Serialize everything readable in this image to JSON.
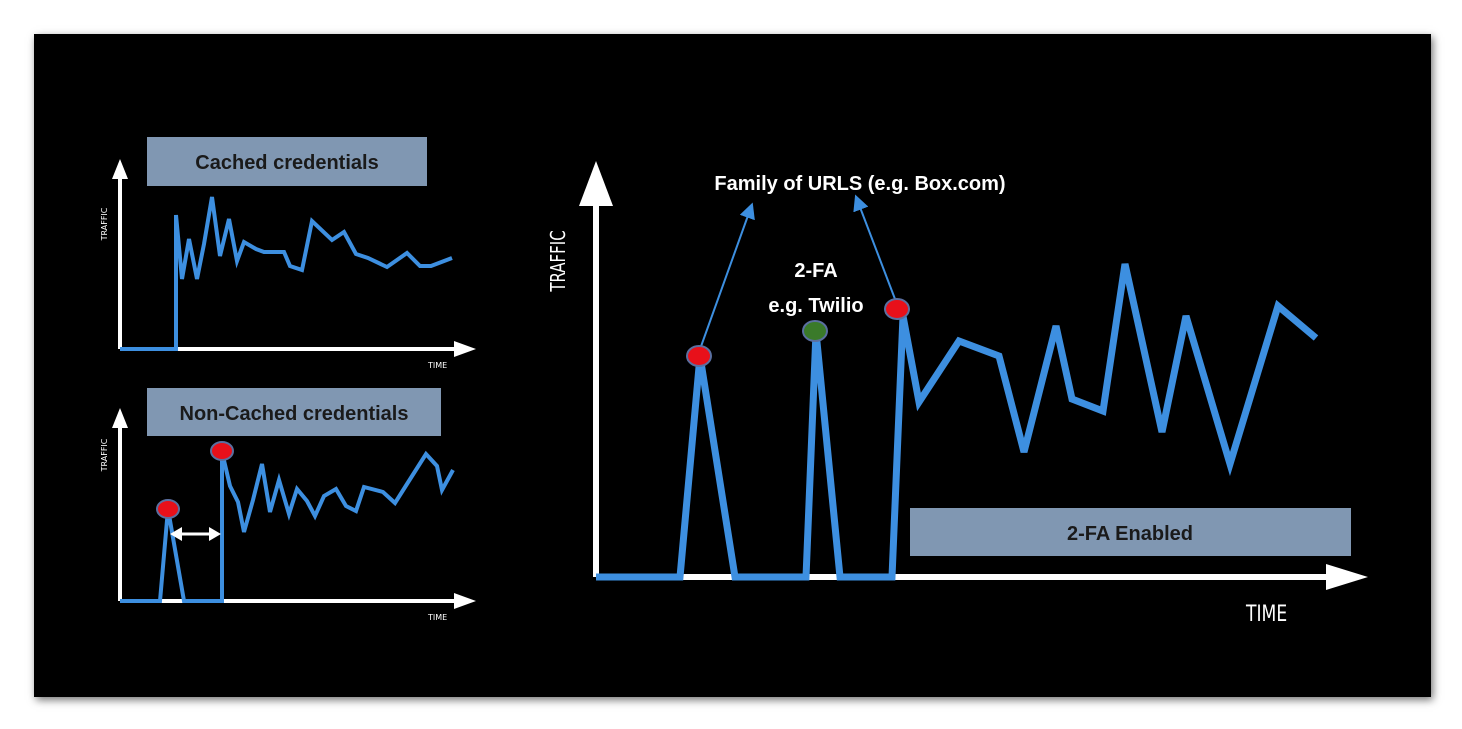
{
  "colors": {
    "background": "#000000",
    "line": "#3d8fe0",
    "axis": "#ffffff",
    "banner_fill": "#8097b2",
    "marker_red": "#e8101a",
    "marker_green": "#3a7a2a",
    "marker_stroke": "#5a6fa0"
  },
  "small_chart_top": {
    "banner": "Cached credentials",
    "y_axis_label": "TRAFFIC",
    "x_axis_label": "TIME"
  },
  "small_chart_bottom": {
    "banner": "Non-Cached credentials",
    "y_axis_label": "TRAFFIC",
    "x_axis_label": "TIME"
  },
  "main_chart": {
    "y_axis_label": "TRAFFIC",
    "x_axis_label": "TIME",
    "annotation_urls": "Family of URLS (e.g. Box.com)",
    "annotation_2fa_line1": "2-FA",
    "annotation_2fa_line2": "e.g. Twilio",
    "banner": "2-FA Enabled"
  }
}
